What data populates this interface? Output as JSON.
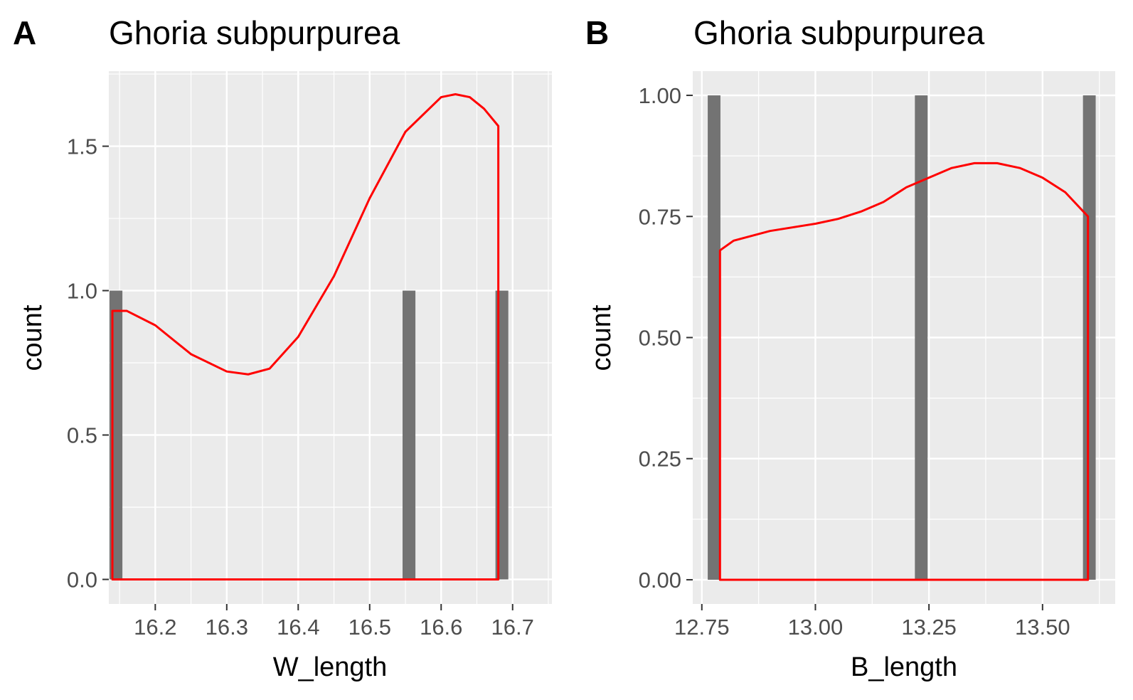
{
  "chart_data": [
    {
      "panel": "A",
      "type": "bar",
      "title": "Ghoria subpurpurea",
      "xlabel": "W_length",
      "ylabel": "count",
      "xlim": [
        16.135,
        16.755
      ],
      "ylim": [
        -0.085,
        1.76
      ],
      "xticks": [
        "16.2",
        "16.3",
        "16.4",
        "16.5",
        "16.6",
        "16.7"
      ],
      "yticks": [
        "0.0",
        "0.5",
        "1.0",
        "1.5"
      ],
      "grid": true,
      "bar_width": 0.018,
      "bars": [
        {
          "x": 16.145,
          "count": 1
        },
        {
          "x": 16.555,
          "count": 1
        },
        {
          "x": 16.685,
          "count": 1
        }
      ],
      "series": [
        {
          "type": "density",
          "color": "#ff0000",
          "x": [
            16.14,
            16.16,
            16.2,
            16.25,
            16.3,
            16.33,
            16.36,
            16.4,
            16.45,
            16.5,
            16.55,
            16.6,
            16.62,
            16.64,
            16.66,
            16.68
          ],
          "y": [
            0.93,
            0.93,
            0.88,
            0.78,
            0.72,
            0.71,
            0.73,
            0.84,
            1.05,
            1.32,
            1.55,
            1.67,
            1.68,
            1.67,
            1.63,
            1.57
          ]
        }
      ]
    },
    {
      "panel": "B",
      "type": "bar",
      "title": "Ghoria subpurpurea",
      "xlabel": "B_length",
      "ylabel": "count",
      "xlim": [
        12.73,
        13.66
      ],
      "ylim": [
        -0.05,
        1.05
      ],
      "xticks": [
        "12.75",
        "13.00",
        "13.25",
        "13.50"
      ],
      "yticks": [
        "0.00",
        "0.25",
        "0.50",
        "0.75",
        "1.00"
      ],
      "grid": true,
      "bar_width": 0.028,
      "bars": [
        {
          "x": 12.777,
          "count": 1
        },
        {
          "x": 13.233,
          "count": 1
        },
        {
          "x": 13.603,
          "count": 1
        }
      ],
      "series": [
        {
          "type": "density",
          "color": "#ff0000",
          "x": [
            12.79,
            12.82,
            12.9,
            13.0,
            13.05,
            13.1,
            13.15,
            13.2,
            13.25,
            13.3,
            13.35,
            13.4,
            13.45,
            13.5,
            13.55,
            13.6
          ],
          "y": [
            0.68,
            0.7,
            0.72,
            0.735,
            0.745,
            0.76,
            0.78,
            0.81,
            0.83,
            0.85,
            0.86,
            0.86,
            0.85,
            0.83,
            0.8,
            0.75
          ]
        }
      ]
    }
  ]
}
